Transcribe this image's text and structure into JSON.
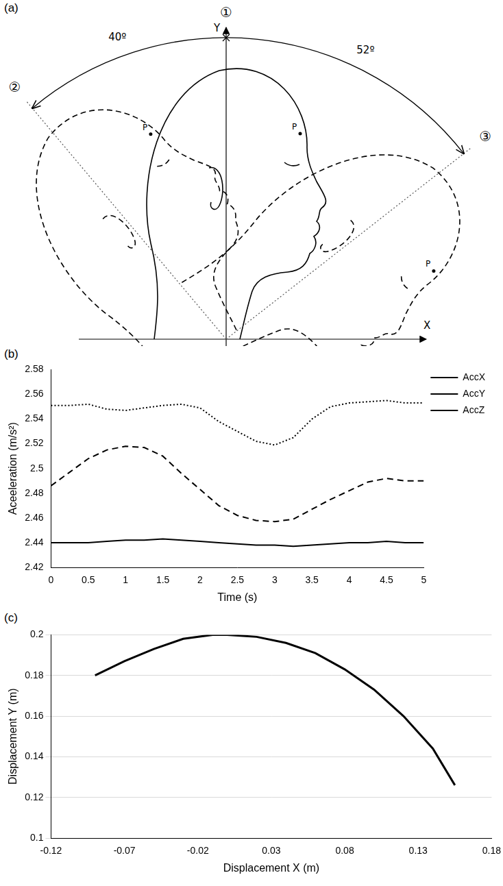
{
  "diagram": {
    "label": "(a)",
    "x_axis": "X",
    "y_axis": "Y",
    "positions": [
      {
        "id": "①",
        "angle": 0,
        "point": "P"
      },
      {
        "id": "②",
        "angle": 40,
        "angle_label": "40º",
        "direction": "back",
        "point": "P"
      },
      {
        "id": "③",
        "angle": 52,
        "angle_label": "52º",
        "direction": "forward",
        "point": "P"
      }
    ]
  },
  "chart_data": [
    {
      "label": "(b)",
      "type": "line",
      "x_label": "Time (s)",
      "y_label": "Aceeleration (m/s²)",
      "x": [
        0,
        0.25,
        0.5,
        0.75,
        1,
        1.25,
        1.5,
        1.75,
        2,
        2.25,
        2.5,
        2.75,
        3,
        3.25,
        3.5,
        3.75,
        4,
        4.25,
        4.5,
        4.75,
        5
      ],
      "series": [
        {
          "name": "AccX",
          "color": "#000000",
          "line_style": "dashed",
          "values": [
            2.486,
            2.497,
            2.508,
            2.515,
            2.518,
            2.517,
            2.51,
            2.496,
            2.483,
            2.47,
            2.462,
            2.458,
            2.457,
            2.459,
            2.467,
            2.475,
            2.482,
            2.489,
            2.492,
            2.49,
            2.49
          ]
        },
        {
          "name": "AccY",
          "color": "#000000",
          "line_style": "dotted",
          "values": [
            2.551,
            2.551,
            2.552,
            2.548,
            2.547,
            2.549,
            2.551,
            2.552,
            2.549,
            2.538,
            2.53,
            2.522,
            2.519,
            2.525,
            2.54,
            2.55,
            2.553,
            2.554,
            2.555,
            2.553,
            2.553
          ]
        },
        {
          "name": "AccZ",
          "color": "#000000",
          "line_style": "solid",
          "values": [
            2.44,
            2.44,
            2.44,
            2.441,
            2.442,
            2.442,
            2.443,
            2.442,
            2.441,
            2.44,
            2.439,
            2.438,
            2.438,
            2.437,
            2.438,
            2.439,
            2.44,
            2.44,
            2.441,
            2.44,
            2.44
          ]
        }
      ],
      "xlim": [
        0,
        5
      ],
      "xticks": [
        0,
        0.5,
        1,
        1.5,
        2,
        2.5,
        3,
        3.5,
        4,
        4.5,
        5
      ],
      "ylim": [
        2.42,
        2.58
      ],
      "yticks": [
        2.42,
        2.44,
        2.46,
        2.48,
        2.5,
        2.52,
        2.54,
        2.56,
        2.58
      ],
      "grid": false,
      "legend": "right"
    },
    {
      "label": "(c)",
      "type": "line",
      "x_label": "Displacement X (m)",
      "y_label": "Displacement Y (m)",
      "x": [
        -0.09,
        -0.07,
        -0.05,
        -0.03,
        -0.01,
        0,
        0.02,
        0.04,
        0.06,
        0.08,
        0.1,
        0.12,
        0.14,
        0.155
      ],
      "values": [
        0.18,
        0.187,
        0.193,
        0.198,
        0.2,
        0.2,
        0.199,
        0.196,
        0.191,
        0.183,
        0.173,
        0.16,
        0.144,
        0.126
      ],
      "color": "#000000",
      "xlim": [
        -0.12,
        0.18
      ],
      "xticks": [
        -0.12,
        -0.07,
        -0.02,
        0.03,
        0.08,
        0.13,
        0.18
      ],
      "ylim": [
        0.1,
        0.2
      ],
      "yticks": [
        0.1,
        0.12,
        0.14,
        0.16,
        0.18,
        0.2
      ],
      "grid": "y"
    }
  ]
}
